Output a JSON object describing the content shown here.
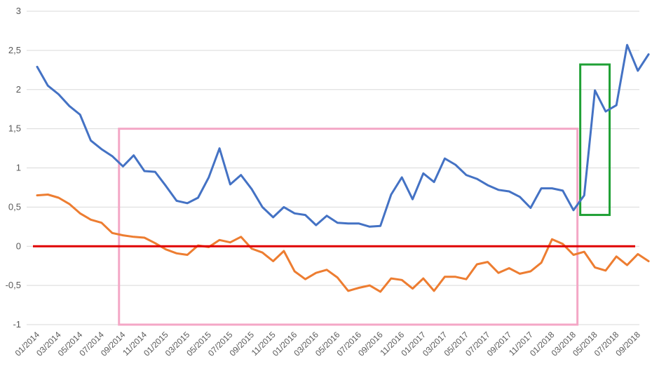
{
  "chart_data": {
    "type": "line",
    "title": "",
    "xlabel": "",
    "ylabel": "",
    "ylim": [
      -1,
      3
    ],
    "y_ticks": [
      3,
      2.5,
      2,
      1.5,
      1,
      0.5,
      0,
      -0.5,
      -1
    ],
    "y_tick_labels": [
      "3",
      "2,5",
      "2",
      "1,5",
      "1",
      "0,5",
      "0",
      "-0,5",
      "-1"
    ],
    "grid": "horizontal",
    "x_labels": [
      "01/2014",
      "03/2014",
      "05/2014",
      "07/2014",
      "09/2014",
      "11/2014",
      "01/2015",
      "03/2015",
      "05/2015",
      "07/2015",
      "09/2015",
      "11/2015",
      "01/2016",
      "03/2016",
      "05/2016",
      "07/2016",
      "09/2016",
      "11/2016",
      "01/2017",
      "03/2017",
      "05/2017",
      "07/2017",
      "09/2017",
      "11/2017",
      "01/2018",
      "03/2018",
      "05/2018",
      "07/2018",
      "09/2018"
    ],
    "x": [
      "01/2014",
      "02/2014",
      "03/2014",
      "04/2014",
      "05/2014",
      "06/2014",
      "07/2014",
      "08/2014",
      "09/2014",
      "10/2014",
      "11/2014",
      "12/2014",
      "01/2015",
      "02/2015",
      "03/2015",
      "04/2015",
      "05/2015",
      "06/2015",
      "07/2015",
      "08/2015",
      "09/2015",
      "10/2015",
      "11/2015",
      "12/2015",
      "01/2016",
      "02/2016",
      "03/2016",
      "04/2016",
      "05/2016",
      "06/2016",
      "07/2016",
      "08/2016",
      "09/2016",
      "10/2016",
      "11/2016",
      "12/2016",
      "01/2017",
      "02/2017",
      "03/2017",
      "04/2017",
      "05/2017",
      "06/2017",
      "07/2017",
      "08/2017",
      "09/2017",
      "10/2017",
      "11/2017",
      "12/2017",
      "01/2018",
      "02/2018",
      "03/2018",
      "04/2018",
      "05/2018",
      "06/2018",
      "07/2018",
      "08/2018",
      "09/2018",
      "10/2018"
    ],
    "series": [
      {
        "color": "#4472c4",
        "values": [
          2.29,
          2.05,
          1.94,
          1.79,
          1.68,
          1.35,
          1.24,
          1.15,
          1.02,
          1.16,
          0.96,
          0.95,
          0.77,
          0.58,
          0.55,
          0.62,
          0.88,
          1.25,
          0.79,
          0.91,
          0.73,
          0.5,
          0.37,
          0.5,
          0.42,
          0.4,
          0.27,
          0.39,
          0.3,
          0.29,
          0.29,
          0.25,
          0.26,
          0.66,
          0.88,
          0.6,
          0.93,
          0.82,
          1.12,
          1.04,
          0.91,
          0.86,
          0.78,
          0.72,
          0.7,
          0.63,
          0.49,
          0.74,
          0.74,
          0.71,
          0.46,
          0.65,
          1.99,
          1.72,
          1.8,
          2.57,
          2.24,
          2.45
        ]
      },
      {
        "color": "#ed7d31",
        "values": [
          0.65,
          0.66,
          0.62,
          0.54,
          0.42,
          0.34,
          0.3,
          0.17,
          0.14,
          0.12,
          0.11,
          0.04,
          -0.04,
          -0.09,
          -0.11,
          0.01,
          -0.01,
          0.08,
          0.05,
          0.12,
          -0.03,
          -0.08,
          -0.19,
          -0.06,
          -0.32,
          -0.42,
          -0.34,
          -0.3,
          -0.4,
          -0.57,
          -0.53,
          -0.5,
          -0.58,
          -0.41,
          -0.43,
          -0.54,
          -0.41,
          -0.57,
          -0.39,
          -0.39,
          -0.42,
          -0.23,
          -0.2,
          -0.34,
          -0.28,
          -0.35,
          -0.32,
          -0.21,
          0.09,
          0.03,
          -0.11,
          -0.07,
          -0.27,
          -0.31,
          -0.13,
          -0.24,
          -0.1,
          -0.19
        ]
      }
    ],
    "reference_line": {
      "y": 0,
      "color": "#e00000"
    },
    "highlight_boxes": [
      {
        "from": "09/2014",
        "to": "03/2018",
        "y_range": [
          -1,
          1.5
        ],
        "color": "#f4a7c6"
      },
      {
        "from": "04/2018",
        "to": "06/2018",
        "y_range": [
          0.4,
          2.32
        ],
        "color": "#1fa035"
      }
    ]
  }
}
